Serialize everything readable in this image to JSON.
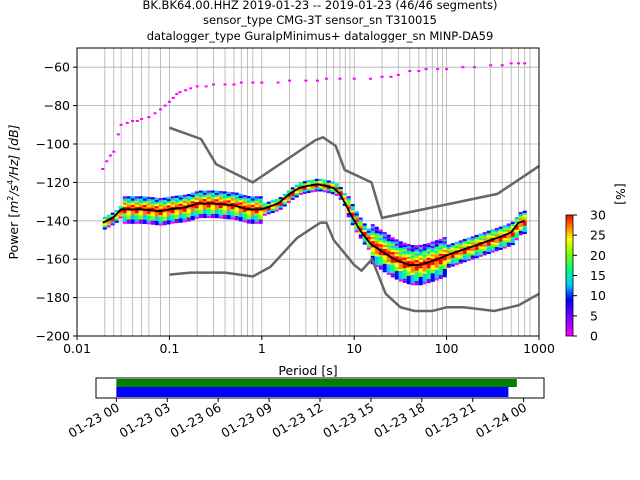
{
  "title_lines": [
    "BK.BK64.00.HHZ   2019-01-23 -- 2019-01-23  (46/46 segments)",
    "sensor_type CMG-3T sensor_sn T310015",
    "datalogger_type GuralpMinimus+ datalogger_sn MINP-DA59"
  ],
  "chart_data": [
    {
      "type": "heatmap",
      "xlabel": "Period [s]",
      "ylabel_parts": {
        "prefix": "Power [",
        "unit_m": "m",
        "sup2": "2",
        "unit_s": "/s",
        "sup4": "4",
        "unit_hz": "/Hz] [dB]"
      },
      "x_scale": "log",
      "xlim": [
        0.01,
        1000
      ],
      "ylim": [
        -200,
        -50
      ],
      "grid": true,
      "x_tick_labels": [
        "0.01",
        "0.1",
        "1",
        "10",
        "100",
        "1000"
      ],
      "x_ticks": [
        0.01,
        0.1,
        1,
        10,
        100,
        1000
      ],
      "y_ticks": [
        -200,
        -180,
        -160,
        -140,
        -120,
        -100,
        -80,
        -60
      ],
      "y_tick_labels": [
        "−200",
        "−180",
        "−160",
        "−140",
        "−120",
        "−100",
        "−80",
        "−60"
      ],
      "period_gridlines": [
        0.02,
        0.025,
        0.03,
        0.04,
        0.05,
        0.06,
        0.08,
        0.1,
        0.2,
        0.3,
        0.4,
        0.5,
        0.6,
        0.7,
        0.8,
        1,
        2,
        3,
        4,
        5,
        6,
        7,
        8,
        9,
        10,
        20,
        30,
        40,
        50,
        60,
        70,
        80,
        90,
        100,
        200,
        300,
        400,
        500,
        600,
        700,
        800
      ],
      "mode_curve": {
        "x": [
          0.019,
          0.025,
          0.03,
          0.05,
          0.08,
          0.1,
          0.15,
          0.2,
          0.3,
          0.5,
          0.7,
          1,
          1.5,
          2,
          2.5,
          3,
          4,
          5,
          6,
          7,
          8,
          9,
          10,
          12,
          15,
          20,
          25,
          30,
          40,
          50,
          60,
          80,
          100,
          150,
          200,
          300,
          400,
          500,
          600,
          700
        ],
        "y": [
          -141,
          -138,
          -134,
          -134,
          -135,
          -134,
          -133,
          -131,
          -131,
          -132,
          -134,
          -134,
          -131,
          -126,
          -123,
          -122,
          -121,
          -122,
          -123,
          -126,
          -131,
          -136,
          -140,
          -146,
          -152,
          -156,
          -159,
          -161,
          -163,
          -163,
          -162,
          -160,
          -158,
          -155,
          -153,
          -150,
          -148,
          -146,
          -141,
          -140
        ]
      },
      "nlnm": {
        "x": [
          0.1,
          0.17,
          0.4,
          0.8,
          1.24,
          2.4,
          4.3,
          5,
          6,
          10,
          12,
          15.6,
          21.9,
          31.6,
          45,
          70,
          101,
          154,
          328,
          600,
          1000
        ],
        "y": [
          -168,
          -167,
          -167,
          -169,
          -164,
          -149,
          -141,
          -141,
          -150,
          -163,
          -166,
          -160,
          -178,
          -185,
          -187,
          -187,
          -185,
          -185,
          -187,
          -184,
          -178
        ]
      },
      "nhnm": {
        "x": [
          0.1,
          0.22,
          0.32,
          0.8,
          3.8,
          4.6,
          6.3,
          7.9,
          15.4,
          20,
          354.8,
          1000
        ],
        "y": [
          -91.5,
          -97.4,
          -110.5,
          -120,
          -98,
          -96.5,
          -101,
          -113.5,
          -120,
          -138.5,
          -126,
          -111.5
        ]
      },
      "top_scatter": {
        "x": [
          0.019,
          0.021,
          0.023,
          0.025,
          0.028,
          0.03,
          0.035,
          0.04,
          0.045,
          0.05,
          0.06,
          0.07,
          0.08,
          0.09,
          0.1,
          0.11,
          0.12,
          0.13,
          0.15,
          0.17,
          0.2,
          0.25,
          0.3,
          0.4,
          0.5,
          0.6,
          0.8,
          1,
          1.5,
          2,
          3,
          4,
          5,
          7,
          10,
          15,
          20,
          25,
          30,
          40,
          50,
          60,
          80,
          100,
          150,
          200,
          300,
          400,
          500,
          600,
          700
        ],
        "y": [
          -113,
          -109,
          -106,
          -104,
          -95,
          -90,
          -89,
          -88,
          -88,
          -87,
          -86,
          -84,
          -82,
          -80,
          -78,
          -76,
          -74,
          -73,
          -72,
          -71,
          -70,
          -70,
          -69,
          -69,
          -69,
          -68,
          -68,
          -68,
          -68,
          -67,
          -67,
          -67,
          -66,
          -66,
          -66,
          -66,
          -65,
          -65,
          -64,
          -62,
          -62,
          -61,
          -61,
          -61,
          -60,
          -60,
          -59,
          -59,
          -58,
          -58,
          -58
        ]
      },
      "colorbar": {
        "label": "[%]",
        "min": 0,
        "max": 30,
        "ticks": [
          "0",
          "5",
          "10",
          "15",
          "20",
          "25",
          "30"
        ]
      }
    },
    {
      "type": "timeline",
      "x_tick_labels": [
        "01-23 00",
        "01-23 03",
        "01-23 06",
        "01-23 09",
        "01-23 12",
        "01-23 15",
        "01-23 18",
        "01-23 21",
        "01-24 00"
      ],
      "range_hours": [
        -1.2,
        25.2
      ],
      "green_bar_hours": [
        0,
        23.6
      ],
      "blue_bar_hours": [
        0,
        23.1
      ],
      "colors": {
        "green": "#008000",
        "blue": "#0000ff"
      }
    }
  ]
}
